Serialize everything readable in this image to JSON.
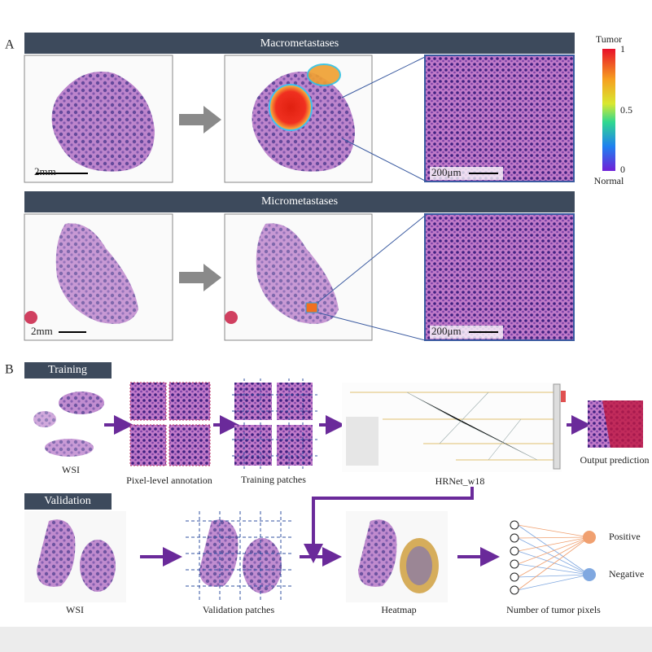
{
  "panel_a": {
    "label": "A",
    "macro": {
      "title": "Macrometastases",
      "scale_wsi": "2mm",
      "scale_zoom": "200μm"
    },
    "micro": {
      "title": "Micrometastases",
      "scale_wsi": "2mm",
      "scale_zoom": "200μm"
    },
    "colorbar": {
      "top": "Tumor",
      "bottom": "Normal",
      "ticks": [
        "1",
        "0.5",
        "0"
      ]
    }
  },
  "panel_b": {
    "label": "B",
    "training": {
      "title": "Training",
      "steps": [
        "WSI",
        "Pixel-level annotation",
        "Training patches",
        "HRNet_w18",
        "Output prediction"
      ]
    },
    "validation": {
      "title": "Validation",
      "steps": [
        "WSI",
        "Validation patches",
        "Heatmap",
        "Number of tumor pixels"
      ],
      "outputs": [
        "Positive",
        "Negative"
      ]
    }
  }
}
